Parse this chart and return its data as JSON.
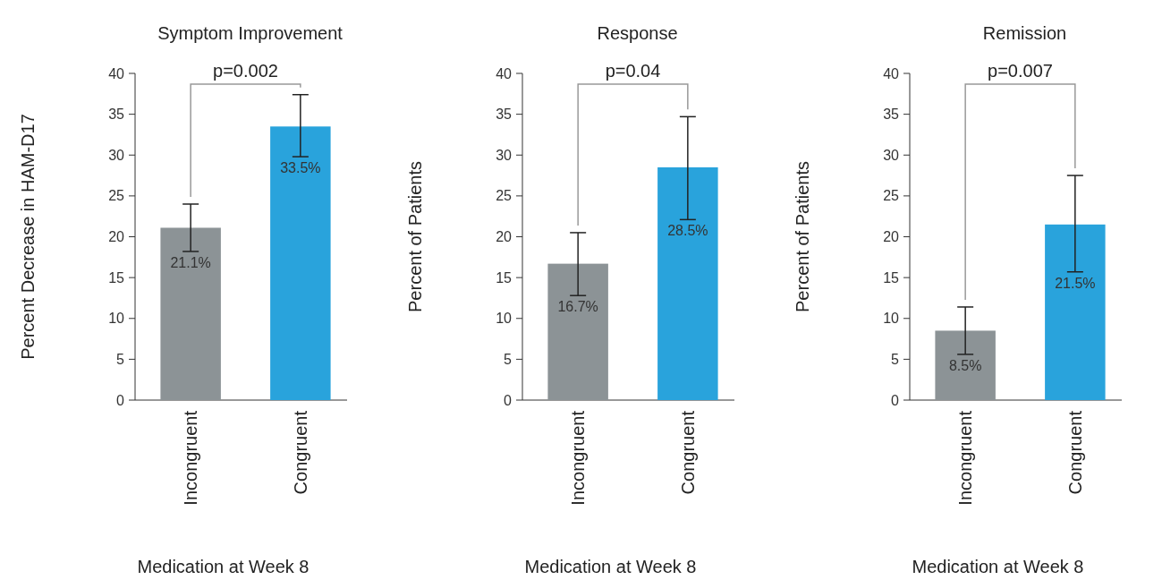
{
  "chart_data": [
    {
      "type": "bar",
      "title": "Symptom Improvement",
      "xlabel": "Medication at Week 8",
      "ylabel": "Percent Decrease in HAM-D17",
      "categories": [
        "Incongruent",
        "Congruent"
      ],
      "values": [
        21.1,
        33.5
      ],
      "colors": [
        "#8c9396",
        "#29a3dc"
      ],
      "errors": [
        [
          18.2,
          24.0
        ],
        [
          29.8,
          37.4
        ]
      ],
      "value_labels": [
        "21.1%",
        "33.5%"
      ],
      "ylim": [
        0,
        40
      ],
      "yticks": [
        0,
        5,
        10,
        15,
        20,
        25,
        30,
        35,
        40
      ],
      "annotations": [
        "p=0.002"
      ],
      "grid": false
    },
    {
      "type": "bar",
      "title": "Response",
      "xlabel": "Medication at Week 8",
      "ylabel": "Percent of Patients",
      "categories": [
        "Incongruent",
        "Congruent"
      ],
      "values": [
        16.7,
        28.5
      ],
      "colors": [
        "#8c9396",
        "#29a3dc"
      ],
      "errors": [
        [
          12.8,
          20.5
        ],
        [
          22.1,
          34.7
        ]
      ],
      "value_labels": [
        "16.7%",
        "28.5%"
      ],
      "ylim": [
        0,
        40
      ],
      "yticks": [
        0,
        5,
        10,
        15,
        20,
        25,
        30,
        35,
        40
      ],
      "annotations": [
        "p=0.04"
      ],
      "grid": false
    },
    {
      "type": "bar",
      "title": "Remission",
      "xlabel": "Medication at Week 8",
      "ylabel": "Percent of Patients",
      "categories": [
        "Incongruent",
        "Congruent"
      ],
      "values": [
        8.5,
        21.5
      ],
      "colors": [
        "#8c9396",
        "#29a3dc"
      ],
      "errors": [
        [
          5.6,
          11.4
        ],
        [
          15.7,
          27.5
        ]
      ],
      "value_labels": [
        "8.5%",
        "21.5%"
      ],
      "ylim": [
        0,
        40
      ],
      "yticks": [
        0,
        5,
        10,
        15,
        20,
        25,
        30,
        35,
        40
      ],
      "annotations": [
        "p=0.007"
      ],
      "grid": false
    }
  ]
}
